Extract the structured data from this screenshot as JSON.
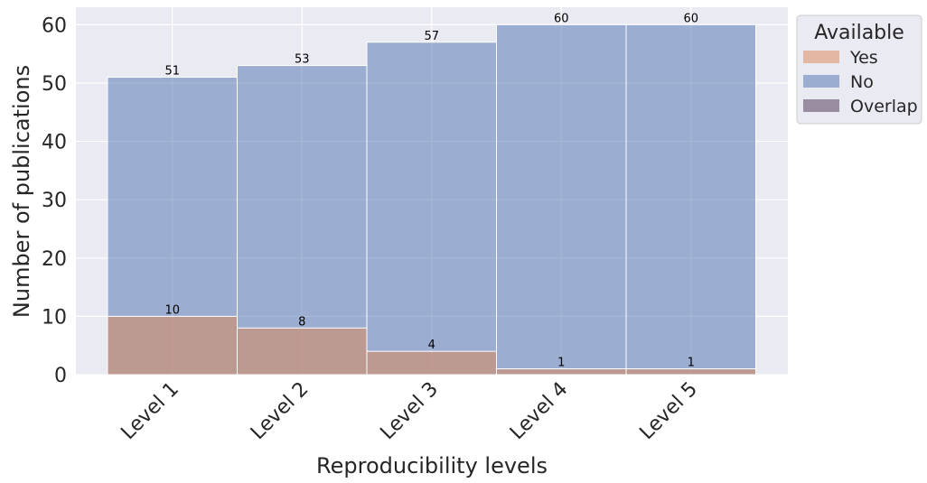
{
  "chart_data": {
    "type": "bar",
    "title": "",
    "xlabel": "Reproducibility levels",
    "ylabel": "Number of publications",
    "categories": [
      "Level 1",
      "Level 2",
      "Level 3",
      "Level 4",
      "Level 5"
    ],
    "series": [
      {
        "name": "Yes",
        "values": [
          10,
          8,
          4,
          1,
          1
        ]
      },
      {
        "name": "No",
        "values": [
          51,
          53,
          57,
          60,
          60
        ]
      }
    ],
    "overlap_label": "Overlap",
    "ylim": [
      0,
      63
    ],
    "yticks": [
      0,
      10,
      20,
      30,
      40,
      50,
      60
    ],
    "grid": true,
    "legend": {
      "title": "Available",
      "placement": "outside-top-right",
      "entries": [
        "Yes",
        "No",
        "Overlap"
      ]
    },
    "colors": {
      "yes": "#dd8452",
      "no": "#4c72b0",
      "overlap": "#8c7c94",
      "background": "#eaeaf2",
      "grid": "#ffffff"
    }
  }
}
